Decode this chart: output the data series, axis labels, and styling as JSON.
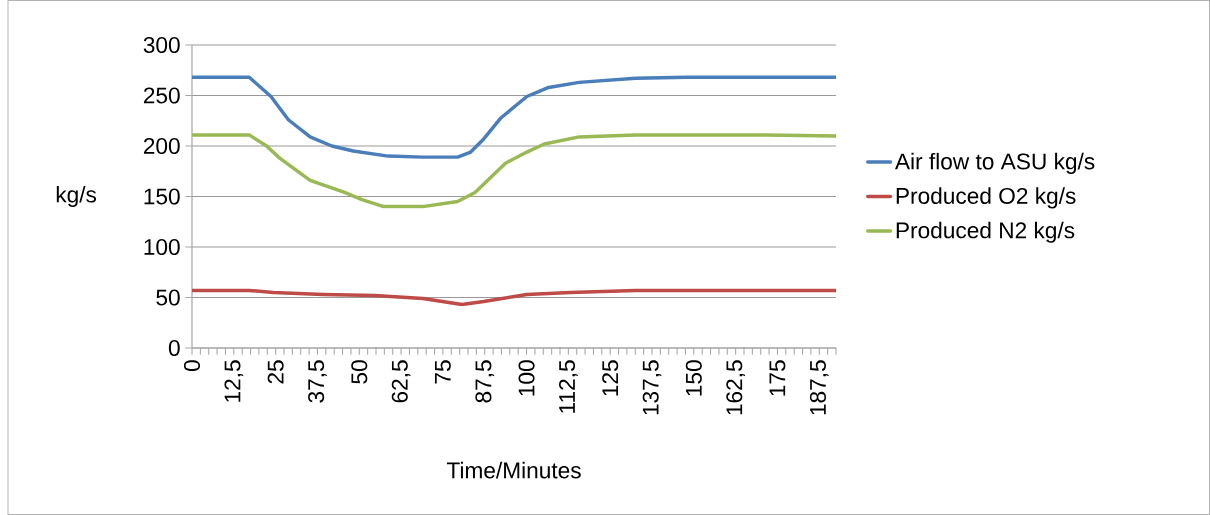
{
  "chart_data": {
    "type": "line",
    "xlabel": "Time/Minutes",
    "ylabel": "kg/s",
    "xlim": [
      0,
      192.5
    ],
    "ylim": [
      0,
      300
    ],
    "yticks": [
      0,
      50,
      100,
      150,
      200,
      250,
      300
    ],
    "xticks": [
      {
        "value": 0,
        "label": "0"
      },
      {
        "value": 2.5,
        "label": null
      },
      {
        "value": 5,
        "label": null
      },
      {
        "value": 7.5,
        "label": null
      },
      {
        "value": 10,
        "label": null
      },
      {
        "value": 12.5,
        "label": "12,5"
      },
      {
        "value": 15,
        "label": null
      },
      {
        "value": 17.5,
        "label": null
      },
      {
        "value": 20,
        "label": null
      },
      {
        "value": 22.5,
        "label": null
      },
      {
        "value": 25,
        "label": "25"
      },
      {
        "value": 27.5,
        "label": null
      },
      {
        "value": 30,
        "label": null
      },
      {
        "value": 32.5,
        "label": null
      },
      {
        "value": 35,
        "label": null
      },
      {
        "value": 37.5,
        "label": "37,5"
      },
      {
        "value": 40,
        "label": null
      },
      {
        "value": 42.5,
        "label": null
      },
      {
        "value": 45,
        "label": null
      },
      {
        "value": 47.5,
        "label": null
      },
      {
        "value": 50,
        "label": "50"
      },
      {
        "value": 52.5,
        "label": null
      },
      {
        "value": 55,
        "label": null
      },
      {
        "value": 57.5,
        "label": null
      },
      {
        "value": 60,
        "label": null
      },
      {
        "value": 62.5,
        "label": "62,5"
      },
      {
        "value": 65,
        "label": null
      },
      {
        "value": 67.5,
        "label": null
      },
      {
        "value": 70,
        "label": null
      },
      {
        "value": 72.5,
        "label": null
      },
      {
        "value": 75,
        "label": "75"
      },
      {
        "value": 77.5,
        "label": null
      },
      {
        "value": 80,
        "label": null
      },
      {
        "value": 82.5,
        "label": null
      },
      {
        "value": 85,
        "label": null
      },
      {
        "value": 87.5,
        "label": "87,5"
      },
      {
        "value": 90,
        "label": null
      },
      {
        "value": 92.5,
        "label": null
      },
      {
        "value": 95,
        "label": null
      },
      {
        "value": 97.5,
        "label": null
      },
      {
        "value": 100,
        "label": "100"
      },
      {
        "value": 102.5,
        "label": null
      },
      {
        "value": 105,
        "label": null
      },
      {
        "value": 107.5,
        "label": null
      },
      {
        "value": 110,
        "label": null
      },
      {
        "value": 112.5,
        "label": "112,5"
      },
      {
        "value": 115,
        "label": null
      },
      {
        "value": 117.5,
        "label": null
      },
      {
        "value": 120,
        "label": null
      },
      {
        "value": 122.5,
        "label": null
      },
      {
        "value": 125,
        "label": "125"
      },
      {
        "value": 127.5,
        "label": null
      },
      {
        "value": 130,
        "label": null
      },
      {
        "value": 132.5,
        "label": null
      },
      {
        "value": 135,
        "label": null
      },
      {
        "value": 137.5,
        "label": "137,5"
      },
      {
        "value": 140,
        "label": null
      },
      {
        "value": 142.5,
        "label": null
      },
      {
        "value": 145,
        "label": null
      },
      {
        "value": 147.5,
        "label": null
      },
      {
        "value": 150,
        "label": "150"
      },
      {
        "value": 152.5,
        "label": null
      },
      {
        "value": 155,
        "label": null
      },
      {
        "value": 157.5,
        "label": null
      },
      {
        "value": 160,
        "label": null
      },
      {
        "value": 162.5,
        "label": "162,5"
      },
      {
        "value": 165,
        "label": null
      },
      {
        "value": 167.5,
        "label": null
      },
      {
        "value": 170,
        "label": null
      },
      {
        "value": 172.5,
        "label": null
      },
      {
        "value": 175,
        "label": "175"
      },
      {
        "value": 177.5,
        "label": null
      },
      {
        "value": 180,
        "label": null
      },
      {
        "value": 182.5,
        "label": null
      },
      {
        "value": 185,
        "label": null
      },
      {
        "value": 187.5,
        "label": "187,5"
      },
      {
        "value": 190,
        "label": null
      },
      {
        "value": 192.5,
        "label": null
      }
    ],
    "grid": "y",
    "legend": "right",
    "marker": "none",
    "line_style": "solid",
    "series": [
      {
        "name": "Air flow to ASU kg/s",
        "color": "#4a7ebb",
        "x": [
          0,
          17.1,
          23.6,
          28.8,
          35.3,
          41.8,
          48.2,
          58.6,
          69,
          79.4,
          83.3,
          87.2,
          92.4,
          100.1,
          106.6,
          115.7,
          132.6,
          148,
          192.5
        ],
        "values": [
          268,
          268,
          249,
          226,
          209,
          200,
          195,
          190,
          189,
          189,
          194,
          207,
          228,
          249,
          258,
          263,
          267,
          268,
          268
        ]
      },
      {
        "name": "Produced O2 kg/s",
        "color": "#be4b48",
        "x": [
          0,
          17.1,
          24.3,
          39.2,
          54.7,
          69,
          80.7,
          87.2,
          100.1,
          113.1,
          132.6,
          192.5
        ],
        "values": [
          57,
          57,
          55,
          53,
          52,
          49,
          43,
          46,
          53,
          55,
          57,
          57
        ]
      },
      {
        "name": "Produced N2 kg/s",
        "color": "#98b954",
        "x": [
          0,
          17.1,
          22.3,
          26.2,
          35.3,
          45.6,
          50.8,
          57.3,
          69,
          79.4,
          84.6,
          93.7,
          100.1,
          105.3,
          115.7,
          132.6,
          171.5,
          192.5
        ],
        "values": [
          211,
          211,
          200,
          188,
          166,
          154,
          147,
          140,
          140,
          145,
          154,
          183,
          194,
          202,
          209,
          211,
          211,
          210
        ]
      }
    ]
  }
}
